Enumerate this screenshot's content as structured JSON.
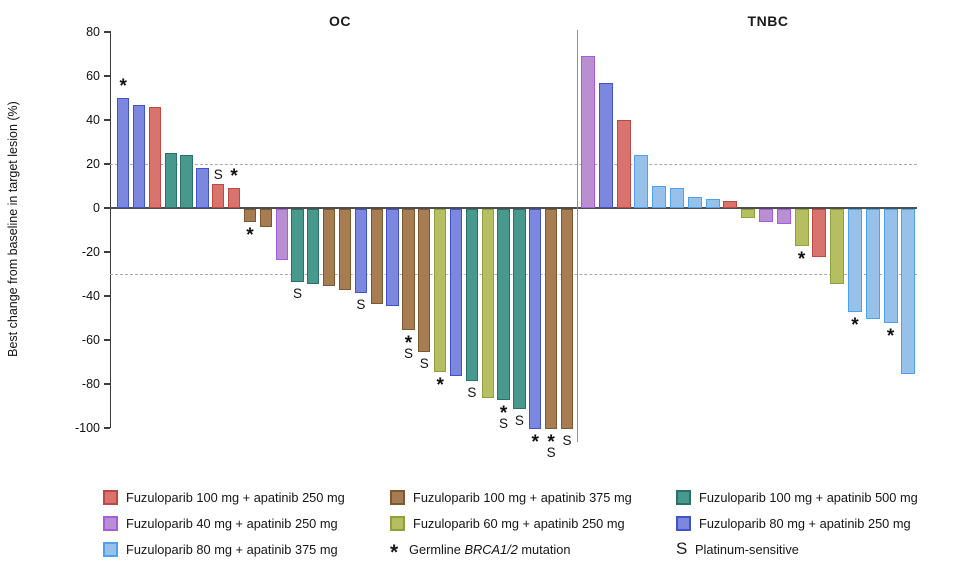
{
  "chart_data": {
    "type": "bar",
    "subtype": "waterfall",
    "ylabel": "Best change from baseline in target lesion (%)",
    "ylim": [
      -100,
      80
    ],
    "yticks": [
      80,
      60,
      40,
      20,
      0,
      -20,
      -40,
      -60,
      -80,
      -100
    ],
    "reference_lines": [
      20,
      -30
    ],
    "grid": "dashed-reference-only",
    "legend_position": "bottom",
    "marker_meanings": {
      "*": "Germline BRCA1/2 mutation",
      "S": "Platinum-sensitive"
    },
    "series_colors": {
      "f100_250": {
        "fill": "#D9736E",
        "stroke": "#C14742"
      },
      "f40_250": {
        "fill": "#BA8FD2",
        "stroke": "#A55CE0"
      },
      "f80_375": {
        "fill": "#97C1E8",
        "stroke": "#4BA3F0"
      },
      "f100_375": {
        "fill": "#A87C52",
        "stroke": "#7C5930"
      },
      "f60_250": {
        "fill": "#B6BE62",
        "stroke": "#8FA03C"
      },
      "f100_500": {
        "fill": "#48988D",
        "stroke": "#2B7169"
      },
      "f80_250": {
        "fill": "#7C88DD",
        "stroke": "#4152CB"
      }
    },
    "groups": [
      {
        "label": "OC",
        "bars": [
          {
            "v": 50,
            "s": "f80_250",
            "m": [
              "*"
            ]
          },
          {
            "v": 47,
            "s": "f80_250",
            "m": []
          },
          {
            "v": 46,
            "s": "f100_250",
            "m": []
          },
          {
            "v": 25,
            "s": "f100_500",
            "m": []
          },
          {
            "v": 24,
            "s": "f100_500",
            "m": []
          },
          {
            "v": 18,
            "s": "f80_250",
            "m": []
          },
          {
            "v": 11,
            "s": "f100_250",
            "m": [
              "S"
            ]
          },
          {
            "v": 9,
            "s": "f100_250",
            "m": [
              "*"
            ]
          },
          {
            "v": -6,
            "s": "f100_375",
            "m": [
              "*"
            ]
          },
          {
            "v": -8,
            "s": "f100_375",
            "m": []
          },
          {
            "v": -23,
            "s": "f40_250",
            "m": []
          },
          {
            "v": -33,
            "s": "f100_500",
            "m": [
              "S"
            ]
          },
          {
            "v": -34,
            "s": "f100_500",
            "m": []
          },
          {
            "v": -35,
            "s": "f100_375",
            "m": []
          },
          {
            "v": -37,
            "s": "f100_375",
            "m": []
          },
          {
            "v": -38,
            "s": "f80_250",
            "m": [
              "S"
            ]
          },
          {
            "v": -43,
            "s": "f100_375",
            "m": []
          },
          {
            "v": -44,
            "s": "f80_250",
            "m": []
          },
          {
            "v": -55,
            "s": "f100_375",
            "m": [
              "*",
              "S"
            ]
          },
          {
            "v": -65,
            "s": "f100_375",
            "m": [
              "S"
            ]
          },
          {
            "v": -74,
            "s": "f60_250",
            "m": [
              "*"
            ]
          },
          {
            "v": -76,
            "s": "f80_250",
            "m": []
          },
          {
            "v": -78,
            "s": "f100_500",
            "m": [
              "S"
            ]
          },
          {
            "v": -86,
            "s": "f60_250",
            "m": []
          },
          {
            "v": -87,
            "s": "f100_500",
            "m": [
              "*",
              "S"
            ]
          },
          {
            "v": -91,
            "s": "f100_500",
            "m": [
              "S"
            ]
          },
          {
            "v": -100,
            "s": "f80_250",
            "m": [
              "*"
            ]
          },
          {
            "v": -100,
            "s": "f100_375",
            "m": [
              "*",
              "S"
            ]
          },
          {
            "v": -100,
            "s": "f100_375",
            "m": [
              "S"
            ]
          }
        ]
      },
      {
        "label": "TNBC",
        "bars": [
          {
            "v": 69,
            "s": "f40_250",
            "m": []
          },
          {
            "v": 57,
            "s": "f80_250",
            "m": []
          },
          {
            "v": 40,
            "s": "f100_250",
            "m": []
          },
          {
            "v": 24,
            "s": "f80_375",
            "m": []
          },
          {
            "v": 10,
            "s": "f80_375",
            "m": []
          },
          {
            "v": 9,
            "s": "f80_375",
            "m": []
          },
          {
            "v": 5,
            "s": "f80_375",
            "m": []
          },
          {
            "v": 4,
            "s": "f80_375",
            "m": []
          },
          {
            "v": 3,
            "s": "f100_250",
            "m": []
          },
          {
            "v": -4,
            "s": "f60_250",
            "m": []
          },
          {
            "v": -6,
            "s": "f40_250",
            "m": []
          },
          {
            "v": -7,
            "s": "f40_250",
            "m": []
          },
          {
            "v": -17,
            "s": "f60_250",
            "m": [
              "*"
            ]
          },
          {
            "v": -22,
            "s": "f100_250",
            "m": []
          },
          {
            "v": -34,
            "s": "f60_250",
            "m": []
          },
          {
            "v": -47,
            "s": "f80_375",
            "m": [
              "*"
            ]
          },
          {
            "v": -50,
            "s": "f80_375",
            "m": []
          },
          {
            "v": -52,
            "s": "f80_375",
            "m": [
              "*"
            ]
          },
          {
            "v": -75,
            "s": "f80_375",
            "m": []
          }
        ]
      }
    ]
  },
  "legend": {
    "columns": [
      {
        "items": [
          {
            "series": "f100_250",
            "label": "Fuzuloparib 100 mg + apatinib 250 mg"
          },
          {
            "series": "f40_250",
            "label": "Fuzuloparib 40 mg + apatinib 250 mg"
          },
          {
            "series": "f80_375",
            "label": "Fuzuloparib 80 mg + apatinib 375 mg"
          }
        ]
      },
      {
        "items": [
          {
            "series": "f100_375",
            "label": "Fuzuloparib 100 mg + apatinib 375 mg"
          },
          {
            "series": "f60_250",
            "label": "Fuzuloparib 60 mg + apatinib 250 mg"
          },
          {
            "symbol": "*",
            "label_prefix": "Germline ",
            "label_italic": "BRCA1/2",
            "label_suffix": " mutation"
          }
        ]
      },
      {
        "items": [
          {
            "series": "f100_500",
            "label": "Fuzuloparib 100 mg + apatinib 500 mg"
          },
          {
            "series": "f80_250",
            "label": "Fuzuloparib 80 mg + apatinib 250 mg"
          },
          {
            "symbol": "S",
            "label": "Platinum-sensitive"
          }
        ]
      }
    ]
  }
}
